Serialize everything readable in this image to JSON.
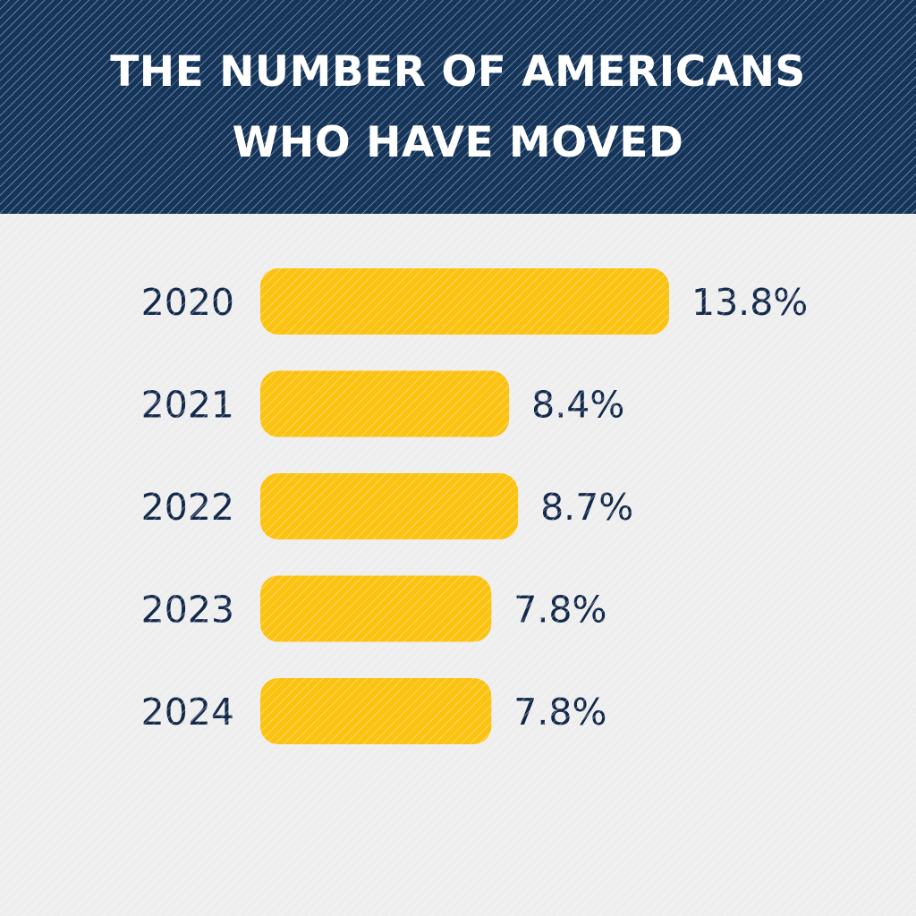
{
  "colors": {
    "header_background": "#14345a",
    "title_text": "#ffffff",
    "page_background": "#eeeeee",
    "bar_fill": "#fbc210",
    "label_text": "#13294b"
  },
  "chart_data": {
    "type": "bar",
    "orientation": "horizontal",
    "title_lines": [
      "THE NUMBER OF AMERICANS",
      "WHO HAVE MOVED"
    ],
    "categories": [
      "2020",
      "2021",
      "2022",
      "2023",
      "2024"
    ],
    "values": [
      13.8,
      8.4,
      8.7,
      7.8,
      7.8
    ],
    "value_labels": [
      "13.8%",
      "8.4%",
      "8.7%",
      "7.8%",
      "7.8%"
    ],
    "unit": "%",
    "xlabel": "",
    "ylabel": "",
    "grid": false,
    "legend": "none"
  }
}
